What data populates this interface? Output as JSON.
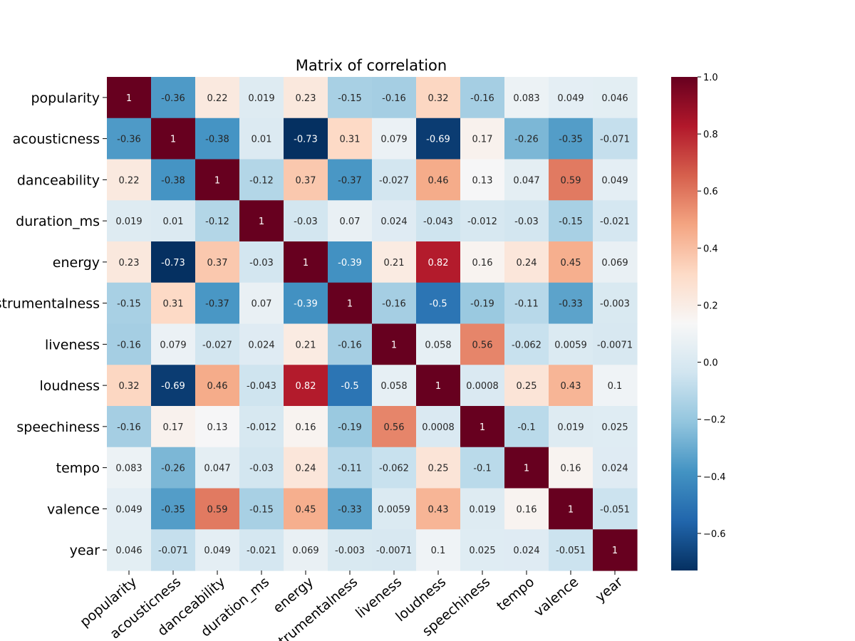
{
  "chart_data": {
    "type": "heatmap",
    "title": "Matrix of correlation",
    "row_labels": [
      "popularity",
      "acousticness",
      "danceability",
      "duration_ms",
      "energy",
      "instrumentalness",
      "liveness",
      "loudness",
      "speechiness",
      "tempo",
      "valence",
      "year"
    ],
    "col_labels": [
      "popularity",
      "acousticness",
      "danceability",
      "duration_ms",
      "energy",
      "instrumentalness",
      "liveness",
      "loudness",
      "speechiness",
      "tempo",
      "valence",
      "year"
    ],
    "values": [
      [
        1,
        -0.36,
        0.22,
        0.019,
        0.23,
        -0.15,
        -0.16,
        0.32,
        -0.16,
        0.083,
        0.049,
        0.046
      ],
      [
        -0.36,
        1,
        -0.38,
        0.01,
        -0.73,
        0.31,
        0.079,
        -0.69,
        0.17,
        -0.26,
        -0.35,
        -0.071
      ],
      [
        0.22,
        -0.38,
        1,
        -0.12,
        0.37,
        -0.37,
        -0.027,
        0.46,
        0.13,
        0.047,
        0.59,
        0.049
      ],
      [
        0.019,
        0.01,
        -0.12,
        1,
        -0.03,
        0.07,
        0.024,
        -0.043,
        -0.012,
        -0.03,
        -0.15,
        -0.021
      ],
      [
        0.23,
        -0.73,
        0.37,
        -0.03,
        1,
        -0.39,
        0.21,
        0.82,
        0.16,
        0.24,
        0.45,
        0.069
      ],
      [
        -0.15,
        0.31,
        -0.37,
        0.07,
        -0.39,
        1,
        -0.16,
        -0.5,
        -0.19,
        -0.11,
        -0.33,
        -0.003
      ],
      [
        -0.16,
        0.079,
        -0.027,
        0.024,
        0.21,
        -0.16,
        1,
        0.058,
        0.56,
        -0.062,
        0.0059,
        -0.0071
      ],
      [
        0.32,
        -0.69,
        0.46,
        -0.043,
        0.82,
        -0.5,
        0.058,
        1,
        0.0008,
        0.25,
        0.43,
        0.1
      ],
      [
        -0.16,
        0.17,
        0.13,
        -0.012,
        0.16,
        -0.19,
        0.56,
        0.0008,
        1,
        -0.1,
        0.019,
        0.025
      ],
      [
        0.083,
        -0.26,
        0.047,
        -0.03,
        0.24,
        -0.11,
        -0.062,
        0.25,
        -0.1,
        1,
        0.16,
        0.024
      ],
      [
        0.049,
        -0.35,
        0.59,
        -0.15,
        0.45,
        -0.33,
        0.0059,
        0.43,
        0.019,
        0.16,
        1,
        -0.051
      ],
      [
        0.046,
        -0.071,
        0.049,
        -0.021,
        0.069,
        -0.003,
        -0.0071,
        0.1,
        0.025,
        0.024,
        -0.051,
        1
      ]
    ],
    "colormap": "RdBu_r",
    "vmin": -0.73,
    "vmax": 1.0,
    "colorbar_ticks": [
      "1.0",
      "0.8",
      "0.6",
      "0.4",
      "0.2",
      "0.0",
      "−0.2",
      "−0.4",
      "−0.6"
    ],
    "colorbar_tick_values": [
      1.0,
      0.8,
      0.6,
      0.4,
      0.2,
      0.0,
      -0.2,
      -0.4,
      -0.6
    ],
    "annotations": true,
    "legend": "colorbar-right"
  }
}
